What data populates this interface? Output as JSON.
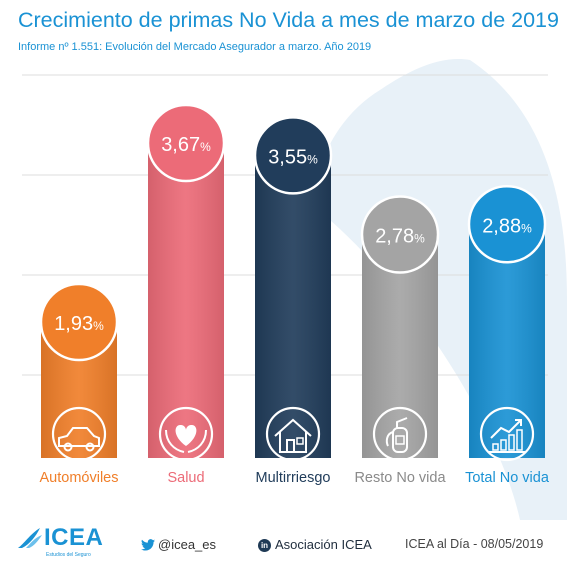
{
  "chart_data": {
    "type": "bar",
    "title": "Crecimiento de primas No Vida a mes de marzo de 2019",
    "subtitle": "Informe nº 1.551: Evolución del Mercado Asegurador a marzo. Año 2019",
    "categories": [
      "Automóviles",
      "Salud",
      "Multirriesgo",
      "Resto No vida",
      "Total No vida"
    ],
    "values": [
      1.93,
      3.67,
      3.55,
      2.78,
      2.88
    ],
    "value_labels": [
      "1,93",
      "3,67",
      "3,55",
      "2,78",
      "2,88"
    ],
    "unit": "%",
    "icons": [
      "car-icon",
      "heart-hands-icon",
      "house-icon",
      "fire-extinguisher-icon",
      "growth-chart-icon"
    ],
    "colors": [
      "#f07f2a",
      "#ec6b78",
      "#213d5b",
      "#a4a4a4",
      "#1a92d4"
    ],
    "label_colors": [
      "#f07f2a",
      "#ec6b78",
      "#213d5b",
      "#8a8a8a",
      "#1a92d4"
    ],
    "ylim": [
      0,
      4
    ],
    "grid": true,
    "xlabel": "",
    "ylabel": ""
  },
  "footer": {
    "logo_text": "ICEA",
    "logo_tagline": "Estudios del Seguro",
    "twitter": "@icea_es",
    "linkedin": "Asociación ICEA",
    "date": "ICEA al Día - 08/05/2019"
  }
}
